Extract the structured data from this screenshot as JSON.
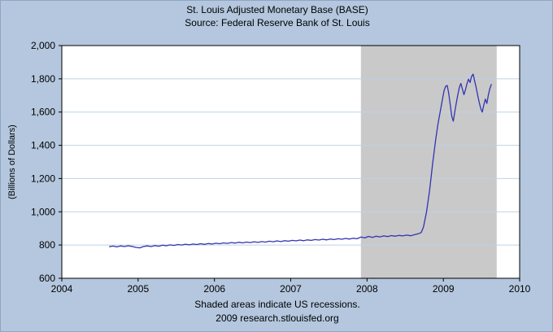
{
  "header": {
    "title": "St. Louis Adjusted Monetary Base (BASE)",
    "subtitle": "Source: Federal Reserve Bank of St. Louis"
  },
  "footer": {
    "note": "Shaded areas indicate US recessions.",
    "credit": "2009 research.stlouisfed.org"
  },
  "chart_data": {
    "type": "line",
    "title": "St. Louis Adjusted Monetary Base (BASE)",
    "subtitle": "Source: Federal Reserve Bank of St. Louis",
    "xlabel": "",
    "ylabel": "(Billions of Dollars)",
    "xlim": [
      2004,
      2010
    ],
    "ylim": [
      600,
      2000
    ],
    "x_ticks": [
      2004,
      2005,
      2006,
      2007,
      2008,
      2009,
      2010
    ],
    "y_ticks": [
      600,
      800,
      1000,
      1200,
      1400,
      1600,
      1800,
      2000
    ],
    "y_tick_labels": [
      "600",
      "800",
      "1,000",
      "1,200",
      "1,400",
      "1,600",
      "1,800",
      "2,000"
    ],
    "grid": "horizontal",
    "legend": "none",
    "recession_band": {
      "start": 2007.92,
      "end": 2009.7,
      "label": "US recession",
      "color": "#c9c9c9"
    },
    "colors": {
      "page_bg": "#b4c7de",
      "plot_bg": "#ffffff",
      "grid": "#bdd2e6",
      "frame": "#000000",
      "text": "#000000",
      "line": "#3333b3"
    },
    "series": [
      {
        "name": "St. Louis Adjusted Monetary Base",
        "color": "#3333b3",
        "points": [
          [
            2004.62,
            790
          ],
          [
            2004.67,
            794
          ],
          [
            2004.72,
            789
          ],
          [
            2004.77,
            795
          ],
          [
            2004.82,
            791
          ],
          [
            2004.87,
            796
          ],
          [
            2004.92,
            792
          ],
          [
            2004.97,
            786
          ],
          [
            2005.02,
            783
          ],
          [
            2005.07,
            791
          ],
          [
            2005.12,
            795
          ],
          [
            2005.17,
            791
          ],
          [
            2005.22,
            797
          ],
          [
            2005.27,
            793
          ],
          [
            2005.32,
            799
          ],
          [
            2005.37,
            796
          ],
          [
            2005.42,
            801
          ],
          [
            2005.47,
            798
          ],
          [
            2005.52,
            803
          ],
          [
            2005.57,
            800
          ],
          [
            2005.62,
            805
          ],
          [
            2005.67,
            801
          ],
          [
            2005.72,
            806
          ],
          [
            2005.77,
            803
          ],
          [
            2005.82,
            808
          ],
          [
            2005.87,
            804
          ],
          [
            2005.92,
            809
          ],
          [
            2005.97,
            806
          ],
          [
            2006.02,
            811
          ],
          [
            2006.07,
            808
          ],
          [
            2006.12,
            813
          ],
          [
            2006.17,
            810
          ],
          [
            2006.22,
            815
          ],
          [
            2006.27,
            812
          ],
          [
            2006.32,
            817
          ],
          [
            2006.37,
            813
          ],
          [
            2006.42,
            818
          ],
          [
            2006.47,
            815
          ],
          [
            2006.52,
            820
          ],
          [
            2006.57,
            816
          ],
          [
            2006.62,
            821
          ],
          [
            2006.67,
            818
          ],
          [
            2006.72,
            823
          ],
          [
            2006.77,
            820
          ],
          [
            2006.82,
            825
          ],
          [
            2006.87,
            821
          ],
          [
            2006.92,
            826
          ],
          [
            2006.97,
            823
          ],
          [
            2007.02,
            828
          ],
          [
            2007.07,
            825
          ],
          [
            2007.12,
            830
          ],
          [
            2007.17,
            826
          ],
          [
            2007.22,
            831
          ],
          [
            2007.27,
            828
          ],
          [
            2007.32,
            833
          ],
          [
            2007.37,
            830
          ],
          [
            2007.42,
            835
          ],
          [
            2007.47,
            831
          ],
          [
            2007.52,
            836
          ],
          [
            2007.57,
            833
          ],
          [
            2007.62,
            838
          ],
          [
            2007.67,
            835
          ],
          [
            2007.72,
            840
          ],
          [
            2007.77,
            836
          ],
          [
            2007.82,
            841
          ],
          [
            2007.87,
            838
          ],
          [
            2007.92,
            848
          ],
          [
            2007.97,
            843
          ],
          [
            2008.02,
            852
          ],
          [
            2008.07,
            846
          ],
          [
            2008.12,
            853
          ],
          [
            2008.17,
            849
          ],
          [
            2008.22,
            855
          ],
          [
            2008.27,
            851
          ],
          [
            2008.32,
            857
          ],
          [
            2008.37,
            853
          ],
          [
            2008.42,
            858
          ],
          [
            2008.47,
            855
          ],
          [
            2008.52,
            860
          ],
          [
            2008.57,
            856
          ],
          [
            2008.62,
            862
          ],
          [
            2008.67,
            868
          ],
          [
            2008.71,
            875
          ],
          [
            2008.74,
            910
          ],
          [
            2008.78,
            1000
          ],
          [
            2008.82,
            1130
          ],
          [
            2008.86,
            1290
          ],
          [
            2008.9,
            1436
          ],
          [
            2008.93,
            1530
          ],
          [
            2008.96,
            1605
          ],
          [
            2008.99,
            1680
          ],
          [
            2009.01,
            1730
          ],
          [
            2009.03,
            1755
          ],
          [
            2009.05,
            1760
          ],
          [
            2009.07,
            1715
          ],
          [
            2009.09,
            1645
          ],
          [
            2009.11,
            1575
          ],
          [
            2009.13,
            1545
          ],
          [
            2009.15,
            1600
          ],
          [
            2009.17,
            1655
          ],
          [
            2009.19,
            1705
          ],
          [
            2009.21,
            1750
          ],
          [
            2009.23,
            1772
          ],
          [
            2009.25,
            1738
          ],
          [
            2009.27,
            1705
          ],
          [
            2009.29,
            1735
          ],
          [
            2009.31,
            1772
          ],
          [
            2009.33,
            1798
          ],
          [
            2009.35,
            1778
          ],
          [
            2009.37,
            1815
          ],
          [
            2009.39,
            1828
          ],
          [
            2009.41,
            1788
          ],
          [
            2009.43,
            1748
          ],
          [
            2009.45,
            1700
          ],
          [
            2009.47,
            1658
          ],
          [
            2009.49,
            1622
          ],
          [
            2009.51,
            1600
          ],
          [
            2009.53,
            1642
          ],
          [
            2009.55,
            1678
          ],
          [
            2009.57,
            1652
          ],
          [
            2009.59,
            1702
          ],
          [
            2009.61,
            1742
          ],
          [
            2009.63,
            1768
          ]
        ]
      }
    ]
  }
}
